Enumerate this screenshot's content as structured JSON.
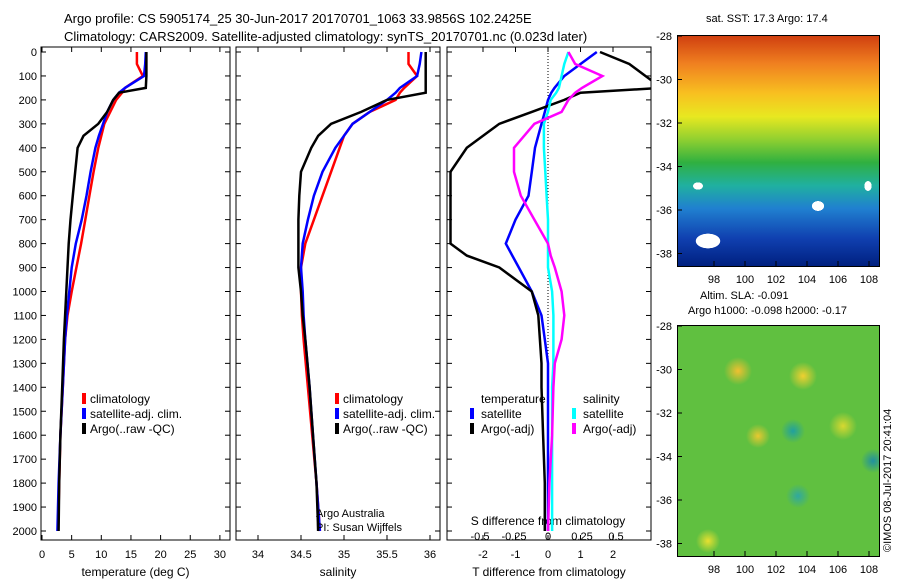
{
  "title": {
    "line1": "Argo profile: CS 5905174_25 30-Jun-2017 20170701_1063 33.9856S 102.2425E",
    "line2": "Climatology: CARS2009. Satellite-adjusted climatology: synTS_20170701.nc (0.023d later)"
  },
  "colors": {
    "climatology": "#ff0000",
    "satellite": "#0000ff",
    "argo": "#000000",
    "sal_satellite": "#00ffff",
    "sal_argo": "#ff00ff"
  },
  "depth_ticks": [
    0,
    100,
    200,
    300,
    400,
    500,
    600,
    700,
    800,
    900,
    1000,
    1100,
    1200,
    1300,
    1400,
    1500,
    1600,
    1700,
    1800,
    1900,
    2000
  ],
  "chart_data": [
    {
      "type": "line",
      "xlabel": "temperature (deg C)",
      "xlim": [
        -2,
        31
      ],
      "ylim": [
        2050,
        0
      ],
      "xticks": [
        0,
        5,
        10,
        15,
        20,
        25,
        30
      ],
      "legend": [
        "climatology",
        "satellite-adj. clim.",
        "Argo(..raw -QC)"
      ],
      "legend_placement": "lower-center",
      "depth": [
        0,
        50,
        100,
        150,
        170,
        200,
        250,
        300,
        350,
        400,
        500,
        600,
        700,
        800,
        900,
        1000,
        1100,
        1200,
        1400,
        1600,
        1800,
        2000
      ],
      "series": [
        {
          "name": "climatology",
          "color": "#ff0000",
          "values": [
            16,
            16,
            17,
            14,
            13.5,
            12.5,
            11.5,
            10.5,
            10,
            9.5,
            8.7,
            8,
            7.3,
            6.6,
            5.8,
            5,
            4.3,
            3.9,
            3.5,
            3.1,
            2.9,
            2.7
          ]
        },
        {
          "name": "satellite-adj. clim.",
          "color": "#0000ff",
          "values": [
            17.5,
            17.4,
            17.2,
            14,
            13,
            12,
            11,
            10.3,
            9.6,
            9,
            8.2,
            7.5,
            6.7,
            5.7,
            5,
            4.6,
            4.2,
            3.9,
            3.5,
            3.1,
            2.8,
            2.6
          ]
        },
        {
          "name": "Argo(..raw -QC)",
          "color": "#000000",
          "values": [
            17.6,
            17.6,
            17.6,
            17.5,
            13,
            12,
            11,
            9.5,
            7,
            6,
            5.6,
            5.2,
            4.8,
            4.5,
            4.3,
            4.1,
            3.9,
            3.7,
            3.4,
            3.1,
            2.9,
            2.8
          ]
        }
      ]
    },
    {
      "type": "line",
      "xlabel": "salinity",
      "xlim": [
        33.75,
        36.1
      ],
      "ylim": [
        2050,
        0
      ],
      "xticks": [
        34,
        34.5,
        35,
        35.5,
        36
      ],
      "legend": [
        "climatology",
        "satellite-adj. clim.",
        "Argo(..raw -QC)"
      ],
      "legend_placement": "lower-center",
      "annotation": [
        "Argo Australia",
        "PI: Susan Wijffels"
      ],
      "depth": [
        0,
        50,
        100,
        150,
        170,
        200,
        250,
        300,
        350,
        400,
        500,
        600,
        700,
        800,
        900,
        1000,
        1100,
        1200,
        1400,
        1600,
        1800,
        2000
      ],
      "series": [
        {
          "name": "climatology",
          "color": "#ff0000",
          "values": [
            35.75,
            35.75,
            35.85,
            35.7,
            35.65,
            35.6,
            35.3,
            35.1,
            35,
            34.95,
            34.85,
            34.75,
            34.65,
            34.55,
            34.5,
            34.5,
            34.51,
            34.53,
            34.58,
            34.63,
            34.68,
            34.72
          ]
        },
        {
          "name": "satellite-adj. clim.",
          "color": "#0000ff",
          "values": [
            35.9,
            35.88,
            35.85,
            35.65,
            35.6,
            35.5,
            35.3,
            35.1,
            35,
            34.9,
            34.75,
            34.65,
            34.58,
            34.52,
            34.5,
            34.52,
            34.53,
            34.55,
            34.6,
            34.64,
            34.68,
            34.72
          ]
        },
        {
          "name": "Argo(..raw -QC)",
          "color": "#000000",
          "values": [
            35.95,
            35.95,
            35.95,
            35.95,
            35.95,
            35.5,
            35.2,
            34.85,
            34.7,
            34.62,
            34.5,
            34.48,
            34.47,
            34.47,
            34.47,
            34.5,
            34.52,
            34.55,
            34.6,
            34.64,
            34.68,
            34.7
          ]
        }
      ]
    },
    {
      "type": "line",
      "xlabel": "T difference from climatology",
      "x2label": "S difference from climatology",
      "xlim": [
        -3.2,
        3.2
      ],
      "ylim": [
        2050,
        0
      ],
      "xticks": [
        -2,
        -1,
        0,
        1,
        2
      ],
      "x2ticks": [
        "-0.5",
        "-0.25",
        "0",
        "0.25",
        "0.5"
      ],
      "legend_temperature": {
        "title": "temperature",
        "items": [
          "satellite",
          "Argo(-adj)"
        ]
      },
      "legend_salinity": {
        "title": "salinity",
        "items": [
          "satellite",
          "Argo(-adj)"
        ]
      },
      "depth": [
        0,
        50,
        100,
        150,
        170,
        200,
        250,
        300,
        400,
        500,
        600,
        700,
        800,
        850,
        900,
        1000,
        1100,
        1200,
        1300,
        1400,
        1600,
        1800,
        2000
      ],
      "series": [
        {
          "name": "T satellite",
          "color": "#0000ff",
          "axis": "T",
          "values": [
            1.5,
            1,
            0.5,
            0.2,
            0.1,
            0,
            -0.1,
            -0.2,
            -0.4,
            -0.5,
            -0.6,
            -1,
            -1.3,
            -1.1,
            -0.9,
            -0.5,
            -0.2,
            -0.1,
            0,
            0,
            0,
            0,
            0
          ]
        },
        {
          "name": "T Argo(-adj)",
          "color": "#000000",
          "axis": "T",
          "values": [
            1.6,
            2.5,
            3,
            3.5,
            1,
            0.5,
            -0.5,
            -1.5,
            -2.5,
            -3,
            -3,
            -3,
            -3,
            -2.5,
            -1.5,
            -0.5,
            -0.3,
            -0.25,
            -0.2,
            -0.2,
            -0.15,
            -0.1,
            -0.1
          ]
        },
        {
          "name": "S satellite",
          "color": "#00ffff",
          "axis": "S",
          "values": [
            0.15,
            0.12,
            0.1,
            0.08,
            0.06,
            0.02,
            0,
            -0.03,
            -0.03,
            -0.02,
            -0.01,
            0,
            0,
            0,
            0,
            0.03,
            0.04,
            0.04,
            0.04,
            0.03,
            0.03,
            0.03,
            0.03
          ]
        },
        {
          "name": "S Argo(-adj)",
          "color": "#ff00ff",
          "axis": "S",
          "values": [
            0.15,
            0.2,
            0.4,
            0.25,
            0.2,
            0.15,
            0.1,
            -0.1,
            -0.25,
            -0.25,
            -0.2,
            -0.1,
            0,
            0.02,
            0.05,
            0.1,
            0.12,
            0.1,
            0.05,
            0.04,
            0.03,
            0.01,
            0
          ]
        }
      ]
    }
  ],
  "maps": {
    "sst": {
      "title": "sat. SST: 17.3 Argo: 17.4",
      "yticks": [
        "-28",
        "-30",
        "-32",
        "-34",
        "-36",
        "-38"
      ],
      "xticks": [
        "98",
        "100",
        "102",
        "104",
        "106",
        "108"
      ]
    },
    "sla": {
      "title1": "Altim. SLA: -0.091",
      "title2": "Argo h1000: -0.098 h2000: -0.17",
      "yticks": [
        "-28",
        "-30",
        "-32",
        "-34",
        "-36",
        "-38"
      ],
      "xticks": [
        "98",
        "100",
        "102",
        "104",
        "106",
        "108"
      ]
    }
  },
  "credit": "©IMOS 08-Jul-2017 20:41:04"
}
